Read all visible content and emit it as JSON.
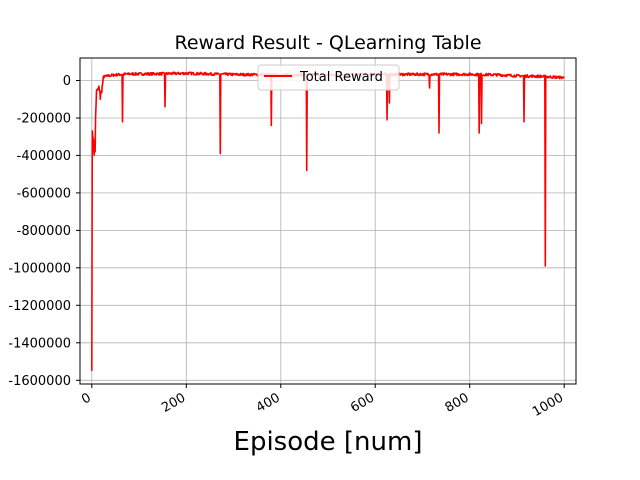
{
  "chart_data": {
    "type": "line",
    "title": "Reward Result - QLearning Table",
    "xlabel": "Episode [num]",
    "ylabel": "",
    "xlim": [
      -25,
      1025
    ],
    "ylim": [
      -1620000,
      120000
    ],
    "xticks": [
      0,
      200,
      400,
      600,
      800,
      1000
    ],
    "yticks": [
      0,
      -200000,
      -400000,
      -600000,
      -800000,
      -1000000,
      -1200000,
      -1400000,
      -1600000
    ],
    "grid": true,
    "legend_position": "upper-center",
    "series": [
      {
        "name": "Total Reward",
        "color": "#ff0000",
        "baseline": [
          [
            0,
            -220000
          ],
          [
            5,
            -390000
          ],
          [
            10,
            -60000
          ],
          [
            15,
            -40000
          ],
          [
            20,
            -70000
          ],
          [
            25,
            20000
          ],
          [
            35,
            25000
          ],
          [
            50,
            30000
          ],
          [
            80,
            35000
          ],
          [
            120,
            35000
          ],
          [
            200,
            38000
          ],
          [
            300,
            32000
          ],
          [
            400,
            30000
          ],
          [
            500,
            30000
          ],
          [
            600,
            32000
          ],
          [
            700,
            33000
          ],
          [
            800,
            33000
          ],
          [
            860,
            30000
          ],
          [
            900,
            25000
          ],
          [
            950,
            22000
          ],
          [
            1000,
            15000
          ]
        ],
        "spikes": [
          [
            0,
            -1550000
          ],
          [
            2,
            -300000
          ],
          [
            7,
            -380000
          ],
          [
            18,
            -100000
          ],
          [
            65,
            -220000
          ],
          [
            155,
            -140000
          ],
          [
            272,
            -390000
          ],
          [
            380,
            -240000
          ],
          [
            455,
            -480000
          ],
          [
            625,
            -210000
          ],
          [
            630,
            -120000
          ],
          [
            715,
            -40000
          ],
          [
            735,
            -280000
          ],
          [
            820,
            -280000
          ],
          [
            825,
            -230000
          ],
          [
            915,
            -220000
          ],
          [
            960,
            -990000
          ]
        ]
      }
    ]
  }
}
